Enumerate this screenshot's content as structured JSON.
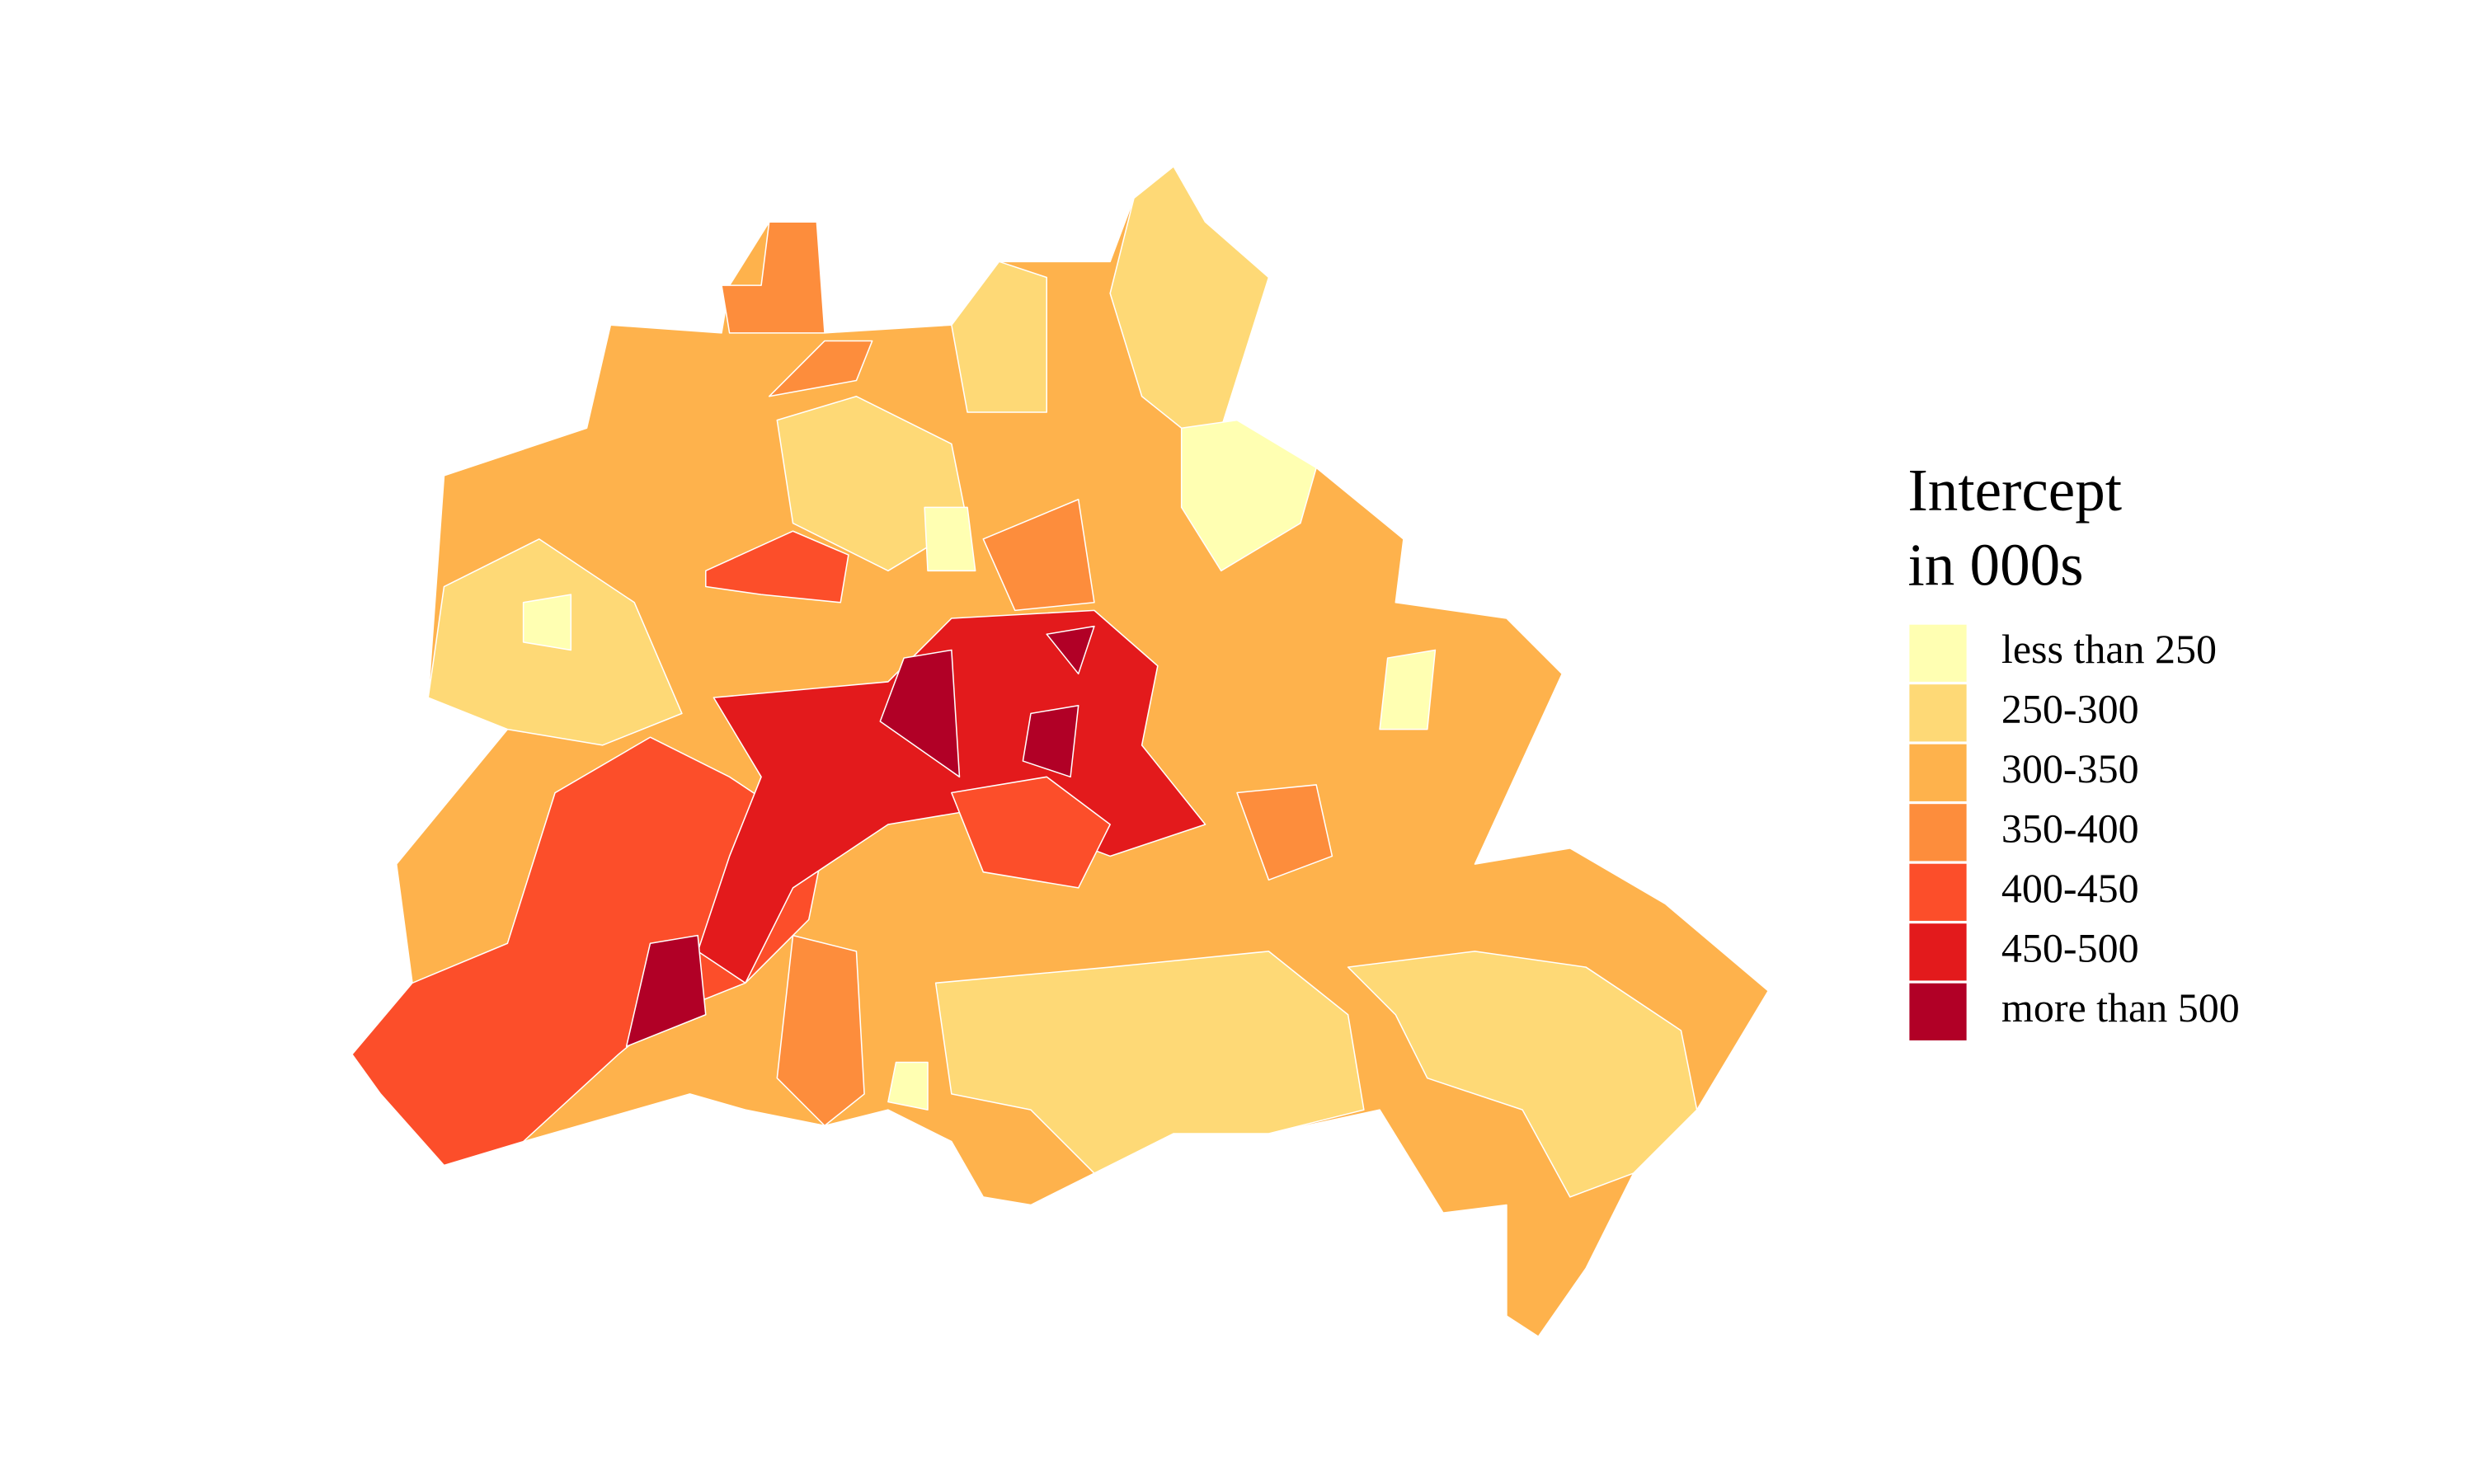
{
  "legend": {
    "title": [
      "Intercept",
      "in 000s"
    ],
    "items": [
      {
        "label": "less than 250",
        "color": "#ffffb2"
      },
      {
        "label": "250-300",
        "color": "#fed976"
      },
      {
        "label": "300-350",
        "color": "#feb24c"
      },
      {
        "label": "350-400",
        "color": "#fd8d3c"
      },
      {
        "label": "400-450",
        "color": "#fc4e2a"
      },
      {
        "label": "450-500",
        "color": "#e31a1c"
      },
      {
        "label": "more than 500",
        "color": "#b10026"
      }
    ]
  }
}
